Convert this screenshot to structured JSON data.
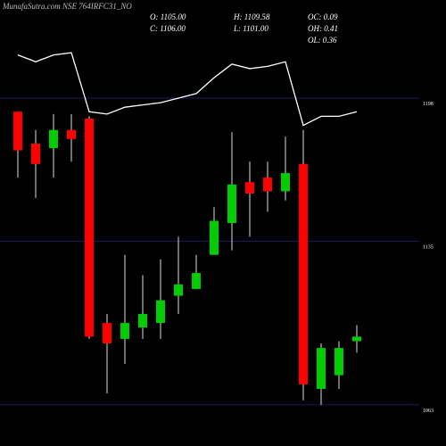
{
  "chart_data": {
    "type": "candlestick",
    "title": "MunafaSutra.com NSE 764IRFC31_NO",
    "info": [
      "O: 1105.00",
      "H: 1109.58",
      "OC: 0.09",
      "C: 1106.00",
      "L: 1101.00",
      "OH: 0.41",
      "OL: 0.36"
    ],
    "categories": [
      null,
      null,
      null,
      null,
      null,
      null,
      null,
      null,
      null,
      null,
      null,
      null,
      null,
      null,
      null,
      null,
      null,
      null,
      null,
      null
    ],
    "open": [
      1192,
      1178,
      1176,
      1184,
      1189,
      1099,
      1092,
      1097,
      1099,
      1111,
      1114,
      1129,
      1143,
      1161,
      1163,
      1157,
      1169,
      1070,
      1076,
      1091
    ],
    "high": [
      1192,
      1184,
      1191,
      1191,
      1190,
      1103,
      1129,
      1120,
      1127,
      1137,
      1129,
      1150,
      1183,
      1170,
      1170,
      1181,
      1184,
      1090,
      1091,
      1098
    ],
    "low": [
      1163,
      1154,
      1163,
      1170,
      1092,
      1068,
      1081,
      1092,
      1092,
      1103,
      1114,
      1129,
      1131,
      1137,
      1148,
      1153,
      1065,
      1063,
      1070,
      1086
    ],
    "close": [
      1175,
      1169,
      1184,
      1180,
      1093,
      1090,
      1099,
      1103,
      1109,
      1116,
      1121,
      1144,
      1160,
      1156,
      1157,
      1165,
      1072,
      1088,
      1088,
      1093
    ],
    "line_values": [
      1217,
      1214,
      1217,
      1218,
      1192,
      1191,
      1194,
      1195,
      1196,
      1198,
      1200,
      1207,
      1213,
      1211,
      1212,
      1214,
      1186,
      1190,
      1190,
      1192
    ],
    "up_color": "#00cc00",
    "down_color": "#ff0000",
    "line_color": "#ffffff",
    "grid_color": "#1c1c5c",
    "ylim": [
      1044.85,
      1241.2
    ],
    "yticks": [
      1198,
      1135,
      1063
    ],
    "grid": true
  }
}
